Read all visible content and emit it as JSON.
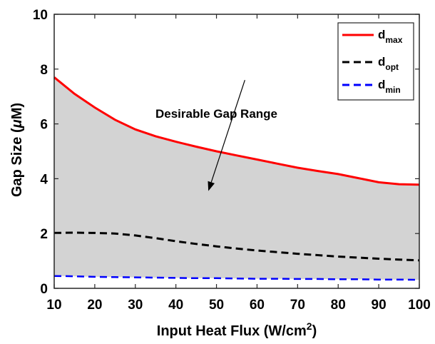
{
  "chart_data": {
    "type": "line",
    "xlabel": {
      "main": "Input Heat Flux (W/cm",
      "sup": "2",
      "end": ")"
    },
    "ylabel": {
      "main": "Gap Size (",
      "mu": "μ",
      "end": "M)"
    },
    "xlim": [
      10,
      100
    ],
    "ylim": [
      0,
      10
    ],
    "xticks": [
      "10",
      "20",
      "30",
      "40",
      "50",
      "60",
      "70",
      "80",
      "90",
      "100"
    ],
    "yticks": [
      "0",
      "2",
      "4",
      "6",
      "8",
      "10"
    ],
    "grid": false,
    "legend_position": "top-right",
    "x": [
      10,
      15,
      20,
      25,
      30,
      35,
      40,
      45,
      50,
      55,
      60,
      65,
      70,
      75,
      80,
      85,
      90,
      95,
      100
    ],
    "series": [
      {
        "name": "d",
        "sub": "max",
        "color": "#ff0000",
        "style": "solid",
        "values": [
          7.7,
          7.1,
          6.6,
          6.15,
          5.8,
          5.55,
          5.35,
          5.17,
          5.0,
          4.85,
          4.7,
          4.55,
          4.4,
          4.28,
          4.17,
          4.02,
          3.87,
          3.8,
          3.78
        ]
      },
      {
        "name": "d",
        "sub": "opt",
        "color": "#000000",
        "style": "dashed",
        "values": [
          2.02,
          2.03,
          2.02,
          2.0,
          1.93,
          1.83,
          1.72,
          1.62,
          1.53,
          1.45,
          1.38,
          1.32,
          1.26,
          1.21,
          1.16,
          1.12,
          1.08,
          1.05,
          1.02
        ]
      },
      {
        "name": "d",
        "sub": "min",
        "color": "#0000ff",
        "style": "dashed",
        "values": [
          0.45,
          0.44,
          0.42,
          0.41,
          0.4,
          0.39,
          0.38,
          0.37,
          0.37,
          0.36,
          0.35,
          0.35,
          0.34,
          0.34,
          0.33,
          0.33,
          0.32,
          0.32,
          0.31
        ]
      }
    ],
    "fill_between": {
      "upper": "max",
      "lower": "min",
      "color": "#d3d3d3"
    },
    "annotation": {
      "text": "Desirable Gap Range",
      "arrow_from": [
        57,
        7.6
      ],
      "arrow_to": [
        48,
        3.55
      ]
    }
  }
}
